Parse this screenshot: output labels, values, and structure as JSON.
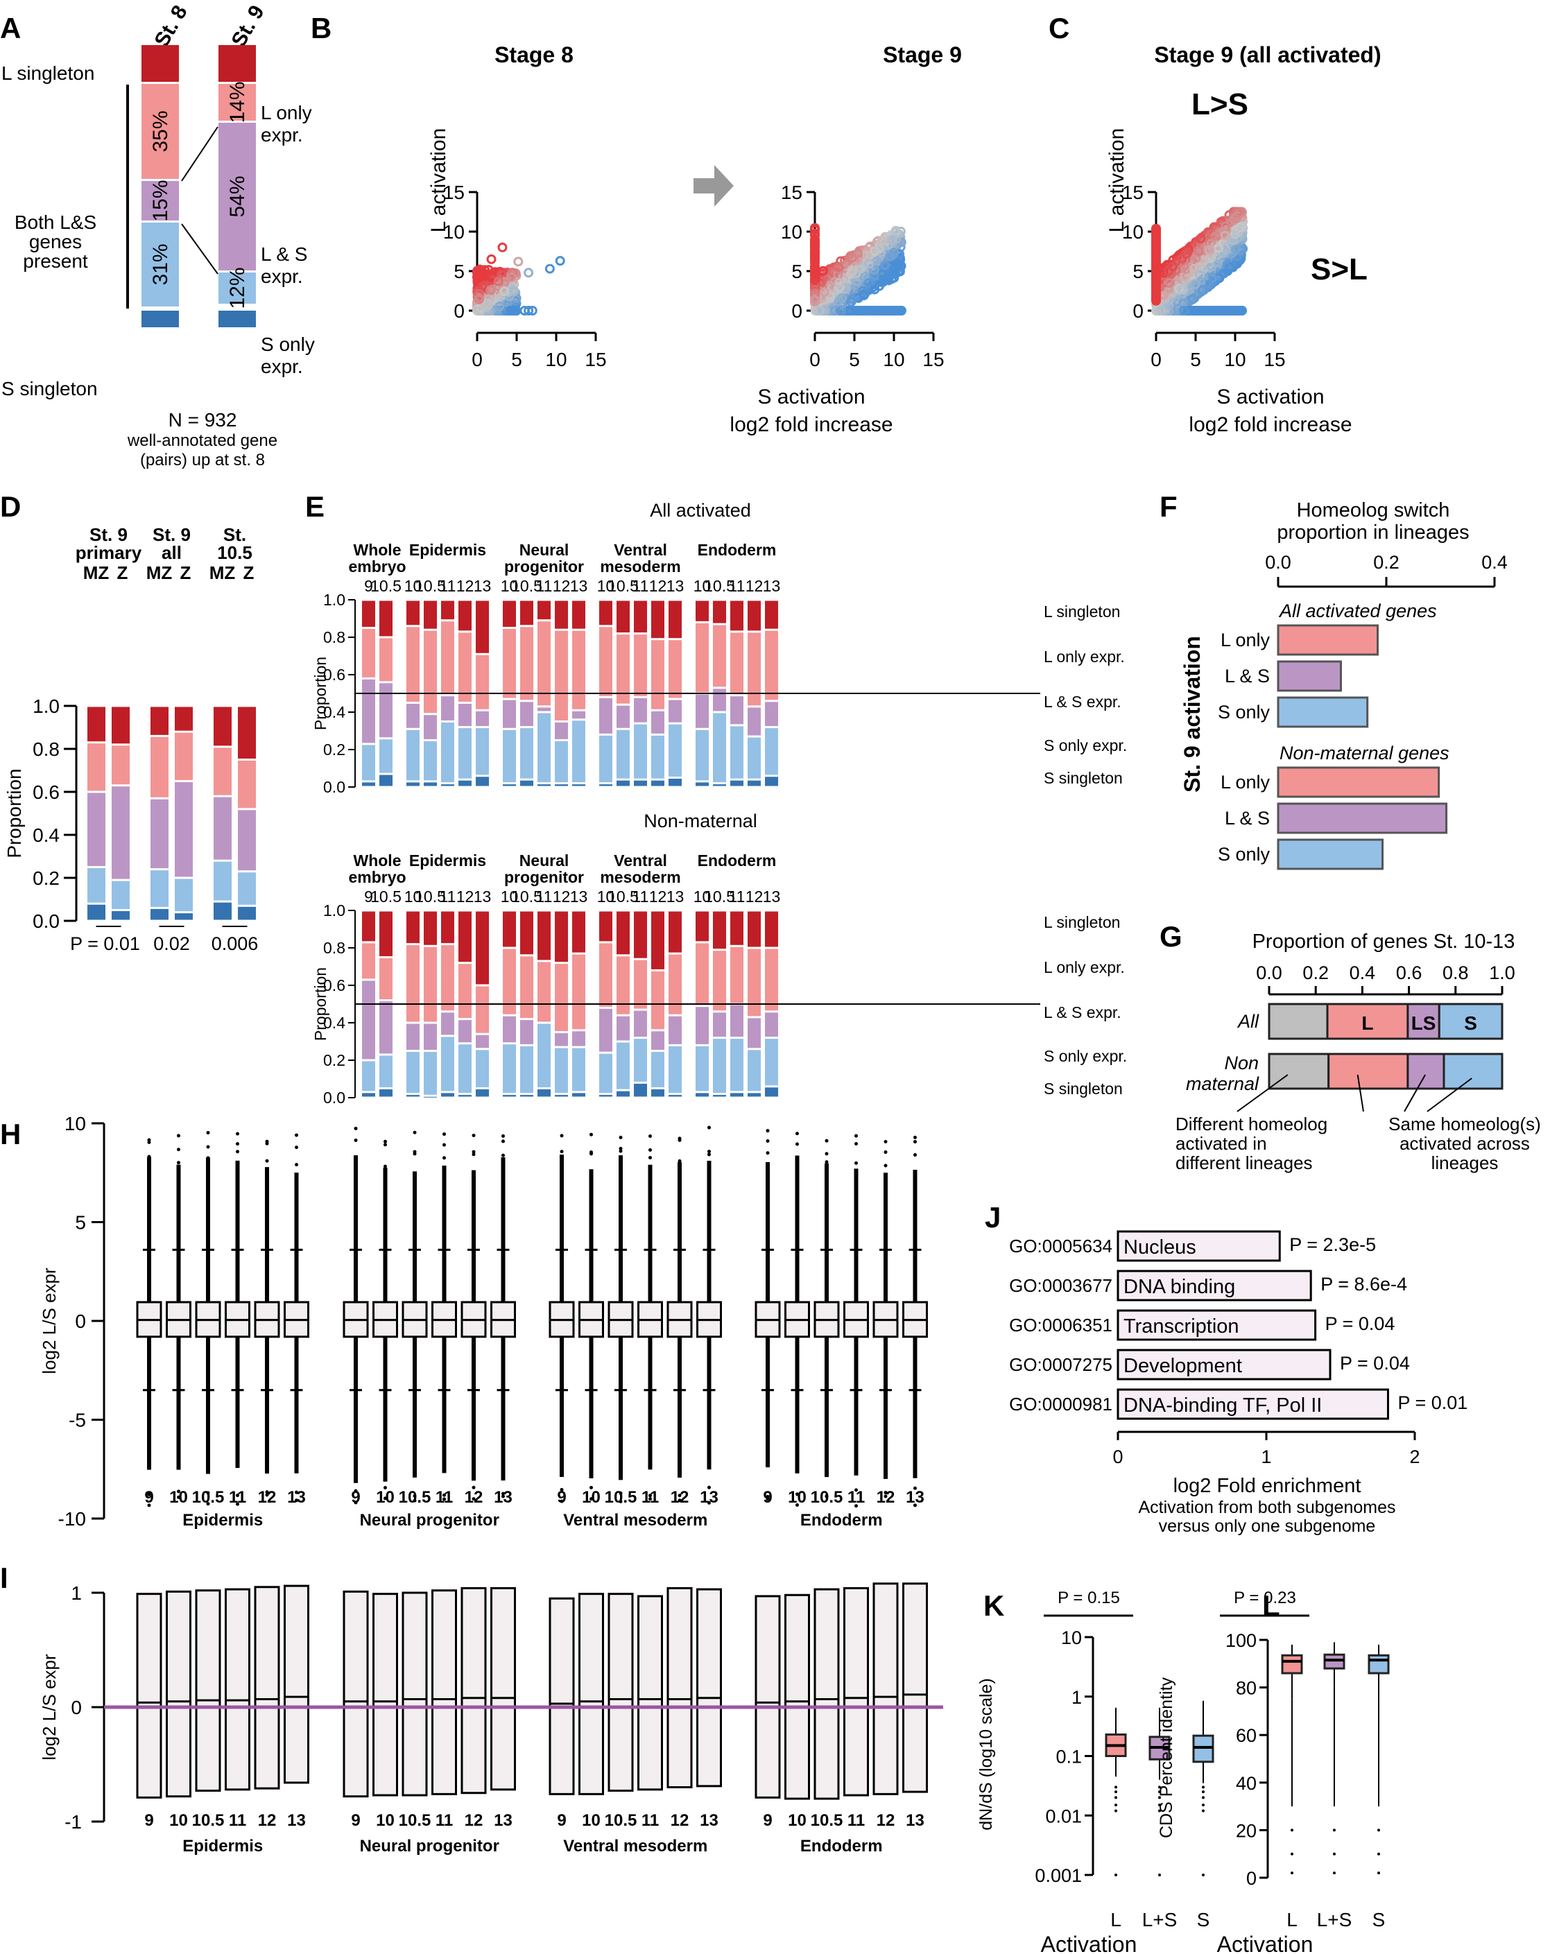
{
  "colors": {
    "L_singleton": "#bf1e26",
    "L_only": "#f29494",
    "LS": "#bb96c5",
    "S_only": "#94c0e6",
    "S_singleton": "#3473b0",
    "gray": "#bfbfbf",
    "box_fill": "#f3eff0",
    "purple_line": "#9a57a2",
    "go_fill": "#f6eef4"
  },
  "panel_labels": [
    "A",
    "B",
    "C",
    "D",
    "E",
    "F",
    "G",
    "H",
    "I",
    "J",
    "K",
    "L"
  ],
  "chart_data": [
    {
      "id": "A",
      "type": "bar",
      "subtype": "stacked-proportion",
      "columns": [
        "St. 8",
        "St. 9"
      ],
      "row_labels": {
        "L_singleton": "L singleton",
        "both": "Both L&S genes present",
        "S_singleton": "S singleton",
        "L_only": "L only expr.",
        "LS": "L & S expr.",
        "S_only": "S only expr."
      },
      "series": [
        {
          "name": "L only expr.",
          "values": [
            35,
            14
          ],
          "labels": [
            "35%",
            "14%"
          ]
        },
        {
          "name": "L & S expr.",
          "values": [
            15,
            54
          ],
          "labels": [
            "15%",
            "54%"
          ]
        },
        {
          "name": "S only expr.",
          "values": [
            31,
            12
          ],
          "labels": [
            "31%",
            "12%"
          ]
        }
      ],
      "footer": [
        "N = 932",
        "well-annotated gene",
        "(pairs) up at st. 8"
      ]
    },
    {
      "id": "B",
      "type": "scatter",
      "panels": [
        {
          "title": "Stage 8",
          "x_range": [
            0,
            15
          ],
          "y_range": [
            0,
            15
          ]
        },
        {
          "title": "Stage 9",
          "x_range": [
            0,
            15
          ],
          "y_range": [
            0,
            15
          ]
        }
      ],
      "ylabel": "L activation",
      "xlabel": "S activation",
      "xlabel2": "log2 fold increase",
      "xticks": [
        "0",
        "5",
        "10",
        "15"
      ],
      "yticks": [
        "0",
        "5",
        "10",
        "15"
      ]
    },
    {
      "id": "C",
      "type": "scatter",
      "title": "Stage 9 (all activated)",
      "x_range": [
        0,
        15
      ],
      "y_range": [
        0,
        15
      ],
      "ylabel": "L activation",
      "xlabel": "S activation",
      "xlabel2": "log2 fold increase",
      "xticks": [
        "0",
        "5",
        "10",
        "15"
      ],
      "yticks": [
        "0",
        "5",
        "10",
        "15"
      ],
      "annotations": [
        "L>S",
        "S>L"
      ]
    },
    {
      "id": "D",
      "type": "bar",
      "subtype": "stacked",
      "ylabel": "Proportion",
      "ylim": [
        0,
        1
      ],
      "yticks": [
        "0.0",
        "0.2",
        "0.4",
        "0.6",
        "0.8",
        "1.0"
      ],
      "groups": [
        {
          "label": [
            "St. 9",
            "primary"
          ],
          "p": "P = 0.01"
        },
        {
          "label": [
            "St. 9",
            "all"
          ],
          "p": "0.02"
        },
        {
          "label": [
            "St.",
            "10.5"
          ],
          "p": "0.006"
        }
      ],
      "bar_labels": [
        "MZ",
        "Z"
      ],
      "bars": [
        {
          "S_singleton": 0.08,
          "S_only": 0.17,
          "LS": 0.35,
          "L_only": 0.23,
          "L_singleton": 0.17
        },
        {
          "S_singleton": 0.05,
          "S_only": 0.14,
          "LS": 0.44,
          "L_only": 0.19,
          "L_singleton": 0.18
        },
        {
          "S_singleton": 0.06,
          "S_only": 0.18,
          "LS": 0.33,
          "L_only": 0.29,
          "L_singleton": 0.14
        },
        {
          "S_singleton": 0.04,
          "S_only": 0.16,
          "LS": 0.45,
          "L_only": 0.23,
          "L_singleton": 0.12
        },
        {
          "S_singleton": 0.09,
          "S_only": 0.19,
          "LS": 0.3,
          "L_only": 0.23,
          "L_singleton": 0.19
        },
        {
          "S_singleton": 0.07,
          "S_only": 0.16,
          "LS": 0.29,
          "L_only": 0.23,
          "L_singleton": 0.25
        }
      ]
    },
    {
      "id": "E",
      "type": "bar",
      "subtype": "stacked",
      "ylabel": "Proportion",
      "ylim": [
        0,
        1
      ],
      "yticks": [
        "0.0",
        "0.2",
        "0.4",
        "0.6",
        "0.8",
        "1.0"
      ],
      "legend": [
        "L singleton",
        "L only expr.",
        "L & S expr.",
        "S only expr.",
        "S singleton"
      ],
      "reference_line": 0.5,
      "groups": [
        {
          "label": [
            "Whole",
            "embryo"
          ],
          "stages": [
            "9",
            "10.5"
          ]
        },
        {
          "label": [
            "Epidermis"
          ],
          "stages": [
            "10",
            "10.5",
            "11",
            "12",
            "13"
          ]
        },
        {
          "label": [
            "Neural",
            "progenitor"
          ],
          "stages": [
            "10",
            "10.5",
            "11",
            "12",
            "13"
          ]
        },
        {
          "label": [
            "Ventral",
            "mesoderm"
          ],
          "stages": [
            "10",
            "10.5",
            "11",
            "12",
            "13"
          ]
        },
        {
          "label": [
            "Endoderm"
          ],
          "stages": [
            "10",
            "10.5",
            "11",
            "12",
            "13"
          ]
        }
      ],
      "subcharts": [
        {
          "title": "All activated",
          "bars": [
            [
              0.03,
              0.2,
              0.35,
              0.27,
              0.15
            ],
            [
              0.07,
              0.19,
              0.3,
              0.24,
              0.2
            ],
            [
              0.03,
              0.28,
              0.14,
              0.41,
              0.14
            ],
            [
              0.03,
              0.22,
              0.14,
              0.45,
              0.16
            ],
            [
              0.02,
              0.33,
              0.14,
              0.4,
              0.11
            ],
            [
              0.04,
              0.28,
              0.13,
              0.38,
              0.17
            ],
            [
              0.06,
              0.26,
              0.09,
              0.3,
              0.29
            ],
            [
              0.02,
              0.29,
              0.16,
              0.38,
              0.15
            ],
            [
              0.04,
              0.28,
              0.14,
              0.4,
              0.14
            ],
            [
              0.02,
              0.38,
              0.03,
              0.46,
              0.11
            ],
            [
              0.02,
              0.23,
              0.1,
              0.49,
              0.16
            ],
            [
              0.02,
              0.34,
              0.05,
              0.43,
              0.16
            ],
            [
              0.02,
              0.26,
              0.2,
              0.38,
              0.14
            ],
            [
              0.04,
              0.27,
              0.13,
              0.38,
              0.18
            ],
            [
              0.04,
              0.3,
              0.14,
              0.34,
              0.18
            ],
            [
              0.04,
              0.24,
              0.13,
              0.38,
              0.21
            ],
            [
              0.05,
              0.29,
              0.13,
              0.32,
              0.21
            ],
            [
              0.03,
              0.28,
              0.19,
              0.38,
              0.12
            ],
            [
              0.02,
              0.38,
              0.13,
              0.34,
              0.13
            ],
            [
              0.04,
              0.29,
              0.16,
              0.34,
              0.17
            ],
            [
              0.04,
              0.23,
              0.16,
              0.4,
              0.17
            ],
            [
              0.06,
              0.26,
              0.14,
              0.38,
              0.16
            ]
          ]
        },
        {
          "title": "Non-maternal",
          "bars": [
            [
              0.03,
              0.17,
              0.43,
              0.2,
              0.17
            ],
            [
              0.05,
              0.18,
              0.29,
              0.23,
              0.25
            ],
            [
              0.02,
              0.23,
              0.15,
              0.42,
              0.18
            ],
            [
              0.01,
              0.24,
              0.15,
              0.41,
              0.19
            ],
            [
              0.03,
              0.3,
              0.13,
              0.36,
              0.18
            ],
            [
              0.02,
              0.27,
              0.13,
              0.3,
              0.28
            ],
            [
              0.05,
              0.21,
              0.08,
              0.26,
              0.4
            ],
            [
              0.02,
              0.27,
              0.15,
              0.36,
              0.2
            ],
            [
              0.02,
              0.26,
              0.14,
              0.34,
              0.24
            ],
            [
              0.05,
              0.35,
              0.0,
              0.33,
              0.27
            ],
            [
              0.02,
              0.25,
              0.08,
              0.37,
              0.28
            ],
            [
              0.03,
              0.24,
              0.09,
              0.41,
              0.23
            ],
            [
              0.02,
              0.22,
              0.24,
              0.35,
              0.17
            ],
            [
              0.04,
              0.26,
              0.14,
              0.32,
              0.24
            ],
            [
              0.08,
              0.24,
              0.15,
              0.27,
              0.26
            ],
            [
              0.05,
              0.2,
              0.11,
              0.32,
              0.32
            ],
            [
              0.02,
              0.26,
              0.16,
              0.33,
              0.23
            ],
            [
              0.03,
              0.25,
              0.21,
              0.34,
              0.17
            ],
            [
              0.02,
              0.3,
              0.14,
              0.33,
              0.21
            ],
            [
              0.03,
              0.29,
              0.18,
              0.31,
              0.19
            ],
            [
              0.03,
              0.23,
              0.17,
              0.37,
              0.2
            ],
            [
              0.06,
              0.26,
              0.14,
              0.34,
              0.2
            ]
          ]
        }
      ]
    },
    {
      "id": "F",
      "type": "bar",
      "subtype": "horizontal",
      "title": [
        "Homeolog switch",
        "proportion in lineages"
      ],
      "xlim": [
        0,
        0.4
      ],
      "xticks": [
        "0.0",
        "0.2",
        "0.4"
      ],
      "ylabel": "St. 9 activation",
      "groups": [
        {
          "title": "All activated genes",
          "categories": [
            "L only",
            "L & S",
            "S only"
          ],
          "values": [
            0.184,
            0.116,
            0.165
          ]
        },
        {
          "title": "Non-maternal genes",
          "categories": [
            "L only",
            "L & S",
            "S only"
          ],
          "values": [
            0.297,
            0.311,
            0.193
          ]
        }
      ]
    },
    {
      "id": "G",
      "type": "bar",
      "subtype": "stacked-horizontal",
      "title": "Proportion of genes St. 10-13",
      "xlim": [
        0,
        1
      ],
      "xticks": [
        "0.0",
        "0.2",
        "0.4",
        "0.6",
        "0.8",
        "1.0"
      ],
      "rows": [
        {
          "label": "All",
          "segments": [
            0.25,
            0.345,
            0.135,
            0.27
          ]
        },
        {
          "label": "Non maternal",
          "segments": [
            0.255,
            0.34,
            0.155,
            0.25
          ]
        }
      ],
      "segment_labels": [
        "",
        "L",
        "LS",
        "S"
      ],
      "notes": [
        [
          "Different homeolog",
          "activated in",
          "different lineages"
        ],
        [
          "Same homeolog(s)",
          "activated across",
          "lineages"
        ]
      ]
    },
    {
      "id": "H",
      "type": "box",
      "ylabel": "log2 L/S expr",
      "ylim": [
        -10,
        10
      ],
      "yticks": [
        "-10",
        "-5",
        "0",
        "5",
        "10"
      ],
      "groups": [
        "Epidermis",
        "Neural progenitor",
        "Ventral mesoderm",
        "Endoderm"
      ],
      "stages": [
        "9",
        "10",
        "10.5",
        "11",
        "12",
        "13"
      ],
      "box": {
        "q1": -0.8,
        "median": 0.05,
        "q3": 0.95,
        "whisker_low": -3.5,
        "whisker_high": 3.6
      },
      "outlier_range": [
        -9.5,
        9.8
      ]
    },
    {
      "id": "I",
      "type": "box",
      "ylabel": "log2 L/S expr",
      "ylim": [
        -1,
        1
      ],
      "yticks": [
        "-1",
        "0",
        "1"
      ],
      "reference_line": 0,
      "groups": [
        "Epidermis",
        "Neural progenitor",
        "Ventral mesoderm",
        "Endoderm"
      ],
      "stages": [
        "9",
        "10",
        "10.5",
        "11",
        "12",
        "13"
      ],
      "boxes": [
        [
          [
            -0.79,
            0.99,
            0.04
          ],
          [
            -0.78,
            1.01,
            0.05
          ],
          [
            -0.73,
            1.02,
            0.06
          ],
          [
            -0.72,
            1.03,
            0.06
          ],
          [
            -0.71,
            1.05,
            0.07
          ],
          [
            -0.66,
            1.06,
            0.09
          ]
        ],
        [
          [
            -0.78,
            1.01,
            0.05
          ],
          [
            -0.77,
            0.99,
            0.05
          ],
          [
            -0.77,
            1.0,
            0.07
          ],
          [
            -0.76,
            1.02,
            0.07
          ],
          [
            -0.75,
            1.04,
            0.08
          ],
          [
            -0.72,
            1.04,
            0.08
          ]
        ],
        [
          [
            -0.76,
            0.95,
            0.03
          ],
          [
            -0.76,
            0.99,
            0.05
          ],
          [
            -0.73,
            0.99,
            0.07
          ],
          [
            -0.72,
            0.97,
            0.07
          ],
          [
            -0.7,
            1.04,
            0.07
          ],
          [
            -0.69,
            1.03,
            0.08
          ]
        ],
        [
          [
            -0.79,
            0.97,
            0.04
          ],
          [
            -0.8,
            0.98,
            0.05
          ],
          [
            -0.8,
            1.03,
            0.07
          ],
          [
            -0.77,
            1.04,
            0.08
          ],
          [
            -0.76,
            1.08,
            0.09
          ],
          [
            -0.74,
            1.08,
            0.11
          ]
        ]
      ]
    },
    {
      "id": "J",
      "type": "bar",
      "subtype": "horizontal",
      "xlim": [
        0,
        2
      ],
      "xticks": [
        "0",
        "1",
        "2"
      ],
      "xlabel": "log2 Fold enrichment",
      "xlabel_sub": [
        "Activation from both subgenomes",
        "versus only one subgenome"
      ],
      "categories": [
        {
          "go": "GO:0005634",
          "term": "Nucleus",
          "value": 1.09,
          "p": "P = 2.3e-5"
        },
        {
          "go": "GO:0003677",
          "term": "DNA binding",
          "value": 1.3,
          "p": "P = 8.6e-4"
        },
        {
          "go": "GO:0006351",
          "term": "Transcription",
          "value": 1.33,
          "p": "P = 0.04"
        },
        {
          "go": "GO:0007275",
          "term": "Development",
          "value": 1.43,
          "p": "P = 0.04"
        },
        {
          "go": "GO:0000981",
          "term": "DNA-binding TF, Pol II",
          "value": 1.82,
          "p": "P = 0.01"
        }
      ]
    },
    {
      "id": "K",
      "type": "box",
      "ylabel": "dN/dS (log10 scale)",
      "yscale": "log",
      "ylim": [
        0.001,
        10
      ],
      "yticks": [
        "0.001",
        "0.01",
        "0.1",
        "1",
        "10"
      ],
      "xlabel": "Activation",
      "categories": [
        "L",
        "L+S",
        "S"
      ],
      "p": "P = 0.15",
      "boxes": [
        {
          "q1": 0.1,
          "median": 0.15,
          "q3": 0.23,
          "low": 0.045,
          "high": 0.65
        },
        {
          "q1": 0.088,
          "median": 0.14,
          "q3": 0.21,
          "low": 0.04,
          "high": 0.65
        },
        {
          "q1": 0.08,
          "median": 0.14,
          "q3": 0.22,
          "low": 0.035,
          "high": 0.85
        }
      ]
    },
    {
      "id": "L",
      "type": "box",
      "ylabel": "CDS Percent identity",
      "ylim": [
        0,
        100
      ],
      "yticks": [
        "0",
        "20",
        "40",
        "60",
        "80",
        "100"
      ],
      "xlabel": "Activation",
      "categories": [
        "L",
        "L+S",
        "S"
      ],
      "p": "P = 0.23",
      "boxes": [
        {
          "q1": 86,
          "median": 91,
          "q3": 93.5,
          "low": 75,
          "high": 98
        },
        {
          "q1": 88,
          "median": 91.5,
          "q3": 93.8,
          "low": 80,
          "high": 99
        },
        {
          "q1": 86,
          "median": 91.5,
          "q3": 93.5,
          "low": 75,
          "high": 98
        }
      ]
    }
  ]
}
